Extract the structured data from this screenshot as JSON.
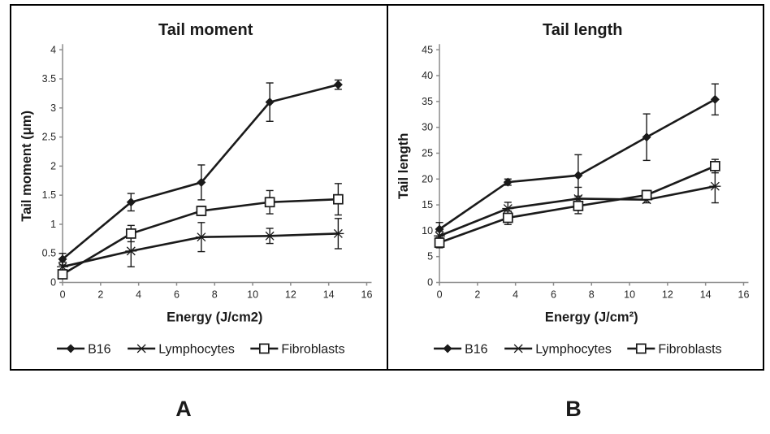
{
  "figure": {
    "panel_labels": {
      "a": "A",
      "b": "B"
    }
  },
  "colors": {
    "ink": "#1a1a1a",
    "axis": "#8c8c8c",
    "text": "#262626",
    "background": "#ffffff"
  },
  "chart_data": [
    {
      "id": "chart-a",
      "type": "line",
      "title": "Tail moment",
      "xlabel": "Energy (J/cm2)",
      "ylabel": "Tail moment (μm)",
      "x": [
        0,
        3.6,
        7.3,
        10.9,
        14.5
      ],
      "xlim": [
        0,
        16
      ],
      "xticks": [
        0,
        2,
        4,
        6,
        8,
        10,
        12,
        14,
        16
      ],
      "ylim": [
        0,
        4
      ],
      "yticks": [
        0,
        0.5,
        1,
        1.5,
        2,
        2.5,
        3,
        3.5,
        4
      ],
      "grid": false,
      "legend_position": "bottom",
      "series": [
        {
          "name": "B16",
          "marker": "diamond-filled",
          "values": [
            0.4,
            1.38,
            1.72,
            3.1,
            3.4
          ],
          "errors": [
            0.1,
            0.15,
            0.3,
            0.33,
            0.08
          ]
        },
        {
          "name": "Lymphocytes",
          "marker": "star",
          "values": [
            0.27,
            0.54,
            0.78,
            0.8,
            0.84
          ],
          "errors": [
            0.08,
            0.27,
            0.25,
            0.13,
            0.26
          ]
        },
        {
          "name": "Fibroblasts",
          "marker": "square-open",
          "values": [
            0.14,
            0.84,
            1.23,
            1.38,
            1.43
          ],
          "errors": [
            0.06,
            0.14,
            0.08,
            0.2,
            0.27
          ]
        }
      ]
    },
    {
      "id": "chart-b",
      "type": "line",
      "title": "Tail length",
      "xlabel": "Energy (J/cm²)",
      "ylabel": "Tail length",
      "x": [
        0,
        3.6,
        7.3,
        10.9,
        14.5
      ],
      "xlim": [
        0,
        16
      ],
      "xticks": [
        0,
        2,
        4,
        6,
        8,
        10,
        12,
        14,
        16
      ],
      "ylim": [
        0,
        45
      ],
      "yticks": [
        0,
        5,
        10,
        15,
        20,
        25,
        30,
        35,
        40,
        45
      ],
      "grid": false,
      "legend_position": "bottom",
      "series": [
        {
          "name": "B16",
          "marker": "diamond-filled",
          "values": [
            10.3,
            19.4,
            20.7,
            28.1,
            35.4
          ],
          "errors": [
            1.3,
            0.6,
            4.0,
            4.5,
            3.0
          ]
        },
        {
          "name": "Lymphocytes",
          "marker": "star",
          "values": [
            9.0,
            14.3,
            16.2,
            16.0,
            18.6
          ],
          "errors": [
            0.9,
            1.2,
            2.2,
            0.6,
            3.2
          ]
        },
        {
          "name": "Fibroblasts",
          "marker": "square-open",
          "values": [
            7.7,
            12.5,
            14.8,
            16.9,
            22.5
          ],
          "errors": [
            1.0,
            1.3,
            1.5,
            0.9,
            1.3
          ]
        }
      ]
    }
  ]
}
